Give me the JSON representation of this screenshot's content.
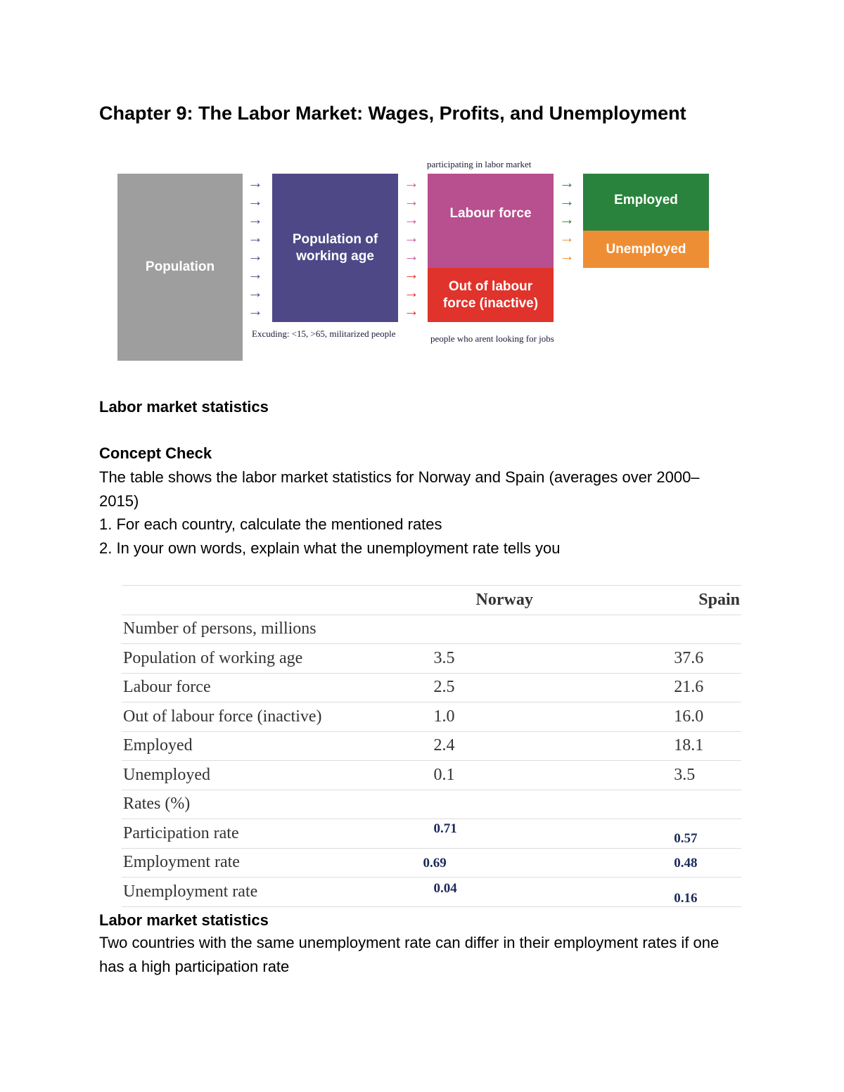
{
  "title": "Chapter 9: The Labor Market: Wages, Profits, and Unemployment",
  "diagram": {
    "population": "Population",
    "working_age": "Population of working age",
    "labour_force": "Labour force",
    "out_of_labour": "Out of labour force (inactive)",
    "employed": "Employed",
    "unemployed": "Unemployed",
    "note_top": "participating in labor market",
    "note_excluding": "Excuding: <15, >65, militarized people",
    "note_inactive": "people who arent looking for jobs",
    "colors": {
      "population": "#9e9e9e",
      "working_age": "#4e4887",
      "labour_force": "#b84f8e",
      "out_of_labour": "#e0332b",
      "employed": "#2a833c",
      "unemployed": "#ee8e34"
    }
  },
  "section1": "Labor market statistics",
  "concept_check": "Concept Check",
  "paragraph": "The table shows the labor market statistics for Norway and Spain (averages over 2000– 2015)",
  "q1": "1. For each country, calculate the mentioned rates",
  "q2": "2. In your own words, explain what the unemployment rate tells you",
  "table": {
    "headers": [
      "",
      "Norway",
      "Spain"
    ],
    "rows": [
      [
        "Number of persons, millions",
        "",
        ""
      ],
      [
        "Population of working age",
        "3.5",
        "37.6"
      ],
      [
        "Labour force",
        "2.5",
        "21.6"
      ],
      [
        "Out of labour force (inactive)",
        "1.0",
        "16.0"
      ],
      [
        "Employed",
        "2.4",
        "18.1"
      ],
      [
        "Unemployed",
        "0.1",
        "3.5"
      ],
      [
        "Rates (%)",
        "",
        ""
      ],
      [
        "Participation rate",
        "0.71",
        "0.57"
      ],
      [
        "Employment rate",
        "0.69",
        "0.48"
      ],
      [
        "Unemployment rate",
        "0.04",
        "0.16"
      ]
    ]
  },
  "section2": "Labor market statistics",
  "conclusion": "Two countries with the same unemployment rate can differ in their employment rates if one has a high participation rate"
}
